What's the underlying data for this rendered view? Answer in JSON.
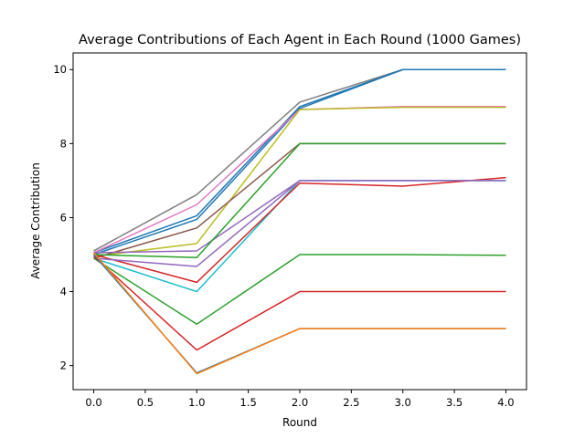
{
  "chart_data": {
    "type": "line",
    "title": "Average Contributions of Each Agent in Each Round (1000 Games)",
    "xlabel": "Round",
    "ylabel": "Average Contribution",
    "xlim": [
      -0.2,
      4.2
    ],
    "ylim": [
      1.35,
      10.45
    ],
    "xticks": [
      0.0,
      0.5,
      1.0,
      1.5,
      2.0,
      2.5,
      3.0,
      3.5,
      4.0
    ],
    "xtick_labels": [
      "0.0",
      "0.5",
      "1.0",
      "1.5",
      "2.0",
      "2.5",
      "3.0",
      "3.5",
      "4.0"
    ],
    "yticks": [
      2,
      4,
      6,
      8,
      10
    ],
    "ytick_labels": [
      "2",
      "4",
      "6",
      "8",
      "10"
    ],
    "grid": false,
    "legend": "none",
    "x": [
      0,
      1,
      2,
      3,
      4
    ],
    "series": [
      {
        "color": "#7f7f7f",
        "values": [
          5.1,
          6.62,
          9.12,
          10.0,
          10.0
        ]
      },
      {
        "color": "#1f77b4",
        "values": [
          5.05,
          6.05,
          9.0,
          10.0,
          10.0
        ]
      },
      {
        "color": "#1f77b4",
        "values": [
          5.0,
          5.95,
          8.95,
          10.0,
          10.0
        ]
      },
      {
        "color": "#e377c2",
        "values": [
          5.05,
          6.35,
          8.92,
          9.0,
          9.0
        ]
      },
      {
        "color": "#bcbd22",
        "values": [
          4.95,
          5.3,
          8.92,
          8.98,
          8.98
        ]
      },
      {
        "color": "#8c564b",
        "values": [
          4.9,
          5.72,
          8.0,
          8.0,
          8.0
        ]
      },
      {
        "color": "#9467bd",
        "values": [
          5.05,
          5.1,
          7.0,
          7.0,
          7.0
        ]
      },
      {
        "color": "#17becf",
        "values": [
          4.9,
          4.0,
          7.0,
          7.0,
          7.0
        ]
      },
      {
        "color": "#d62728",
        "values": [
          5.0,
          4.25,
          6.93,
          6.85,
          7.08
        ]
      },
      {
        "color": "#2ca02c",
        "values": [
          5.0,
          4.92,
          8.0,
          8.0,
          8.0
        ]
      },
      {
        "color": "#9467bd",
        "values": [
          4.9,
          4.68,
          7.0,
          7.0,
          7.0
        ]
      },
      {
        "color": "#2ca02c",
        "values": [
          4.9,
          3.12,
          5.0,
          5.0,
          4.98
        ]
      },
      {
        "color": "#d62728",
        "values": [
          4.95,
          2.42,
          4.0,
          4.0,
          4.0
        ]
      },
      {
        "color": "#1f77b4",
        "values": [
          5.0,
          1.8,
          3.0,
          3.0,
          3.0
        ]
      },
      {
        "color": "#ff7f0e",
        "values": [
          5.05,
          1.78,
          3.0,
          3.0,
          3.0
        ]
      }
    ]
  }
}
